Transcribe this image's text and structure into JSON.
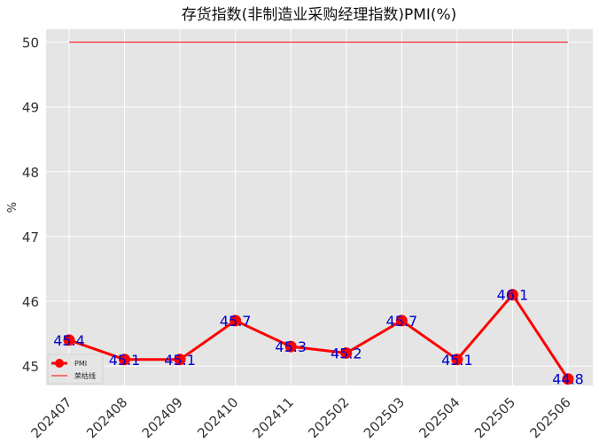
{
  "chart_data": {
    "type": "line",
    "title": "存货指数(非制造业采购经理指数)PMI(%)",
    "ylabel": "%",
    "xlabel": "",
    "categories": [
      "202407",
      "202408",
      "202409",
      "202410",
      "202411",
      "202502",
      "202503",
      "202504",
      "202505",
      "202506"
    ],
    "series": [
      {
        "name": "PMI",
        "values": [
          45.4,
          45.1,
          45.1,
          45.7,
          45.3,
          45.2,
          45.7,
          45.1,
          46.1,
          44.8
        ],
        "color": "#ff0000"
      },
      {
        "name": "荣枯线",
        "values": [
          50,
          50,
          50,
          50,
          50,
          50,
          50,
          50,
          50,
          50
        ],
        "color": "#ff0000"
      }
    ],
    "data_labels": [
      "45.4",
      "45.1",
      "45.1",
      "45.7",
      "45.3",
      "45.2",
      "45.7",
      "45.1",
      "46.1",
      "44.8"
    ],
    "ylim": [
      44.7,
      50.2
    ],
    "yticks": [
      45,
      46,
      47,
      48,
      49,
      50
    ],
    "grid": true,
    "legend_position": "lower-left",
    "background": "#e5e5e5",
    "label_color": "#0000cc"
  }
}
